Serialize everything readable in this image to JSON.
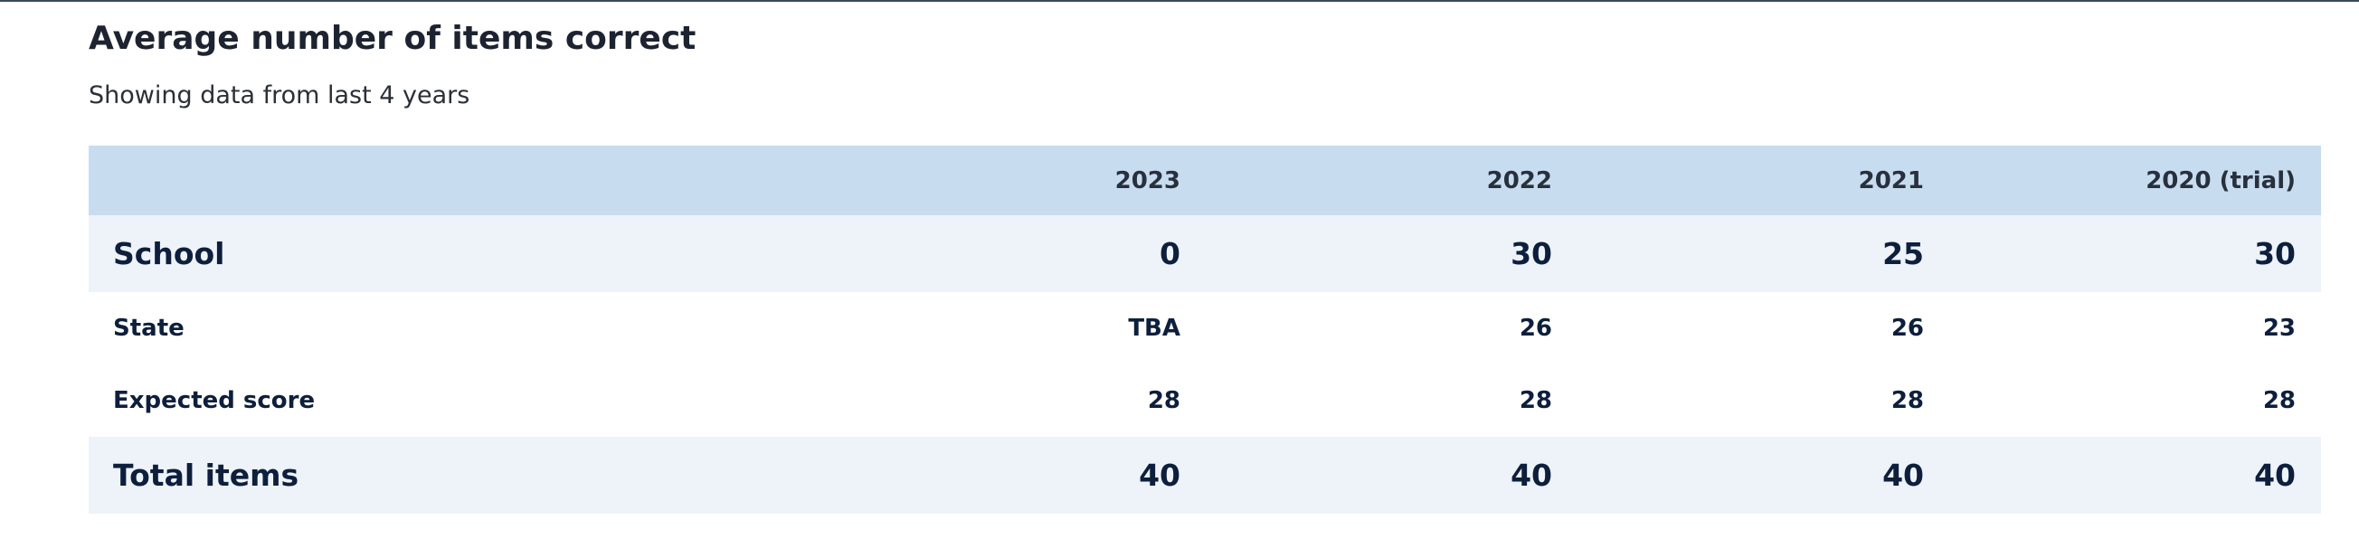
{
  "header": {
    "title": "Average number of items correct",
    "subtitle": "Showing data from last 4 years"
  },
  "table": {
    "columns": [
      "2023",
      "2022",
      "2021",
      "2020 (trial)"
    ],
    "rows": [
      {
        "label": "School",
        "values": [
          0,
          30,
          25,
          30
        ]
      },
      {
        "label": "State",
        "values": [
          "TBA",
          26,
          26,
          23
        ]
      },
      {
        "label": "Expected score",
        "values": [
          28,
          28,
          28,
          28
        ]
      },
      {
        "label": "Total items",
        "values": [
          40,
          40,
          40,
          40
        ]
      }
    ]
  }
}
